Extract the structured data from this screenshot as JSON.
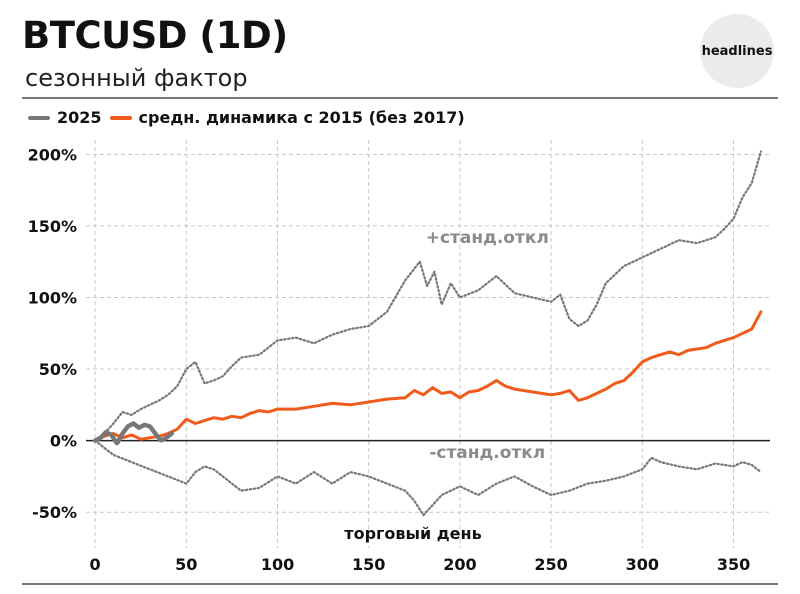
{
  "header": {
    "title": "BTCUSD (1D)",
    "subtitle": "сезонный фактор",
    "logo_text": "headlines"
  },
  "legend": [
    {
      "label": "2025",
      "color": "#777777"
    },
    {
      "label": "средн. динамика с 2015 (без 2017)",
      "color": "#f05a1a"
    }
  ],
  "chart_data": {
    "type": "line",
    "title": "BTCUSD (1D)",
    "subtitle": "сезонный фактор",
    "xlabel": "торговый день",
    "ylabel": "",
    "xlim": [
      -5,
      370
    ],
    "ylim": [
      -75,
      210
    ],
    "x_ticks": [
      0,
      50,
      100,
      150,
      200,
      250,
      300,
      350
    ],
    "y_ticks": [
      -50,
      0,
      50,
      100,
      150,
      200
    ],
    "y_tick_labels": [
      "-50%",
      "0%",
      "50%",
      "100%",
      "150%",
      "200%"
    ],
    "grid": true,
    "legend_position": "top-left",
    "annotations": [
      {
        "text": "+станд.откл",
        "x": 215,
        "y": 138
      },
      {
        "text": "-станд.откл",
        "x": 215,
        "y": -12
      }
    ],
    "series": [
      {
        "name": "средн. динамика с 2015 (без 2017)",
        "color": "#f05a1a",
        "style": "solid",
        "x": [
          0,
          5,
          10,
          15,
          20,
          25,
          30,
          35,
          40,
          45,
          50,
          55,
          60,
          65,
          70,
          75,
          80,
          85,
          90,
          95,
          100,
          110,
          120,
          130,
          140,
          150,
          160,
          170,
          175,
          180,
          185,
          190,
          195,
          200,
          205,
          210,
          215,
          220,
          225,
          230,
          240,
          250,
          255,
          260,
          265,
          270,
          275,
          280,
          285,
          290,
          295,
          300,
          305,
          310,
          315,
          320,
          325,
          330,
          335,
          340,
          345,
          350,
          355,
          360,
          365
        ],
        "y": [
          0,
          3,
          5,
          2,
          4,
          1,
          2,
          3,
          5,
          8,
          15,
          12,
          14,
          16,
          15,
          17,
          16,
          19,
          21,
          20,
          22,
          22,
          24,
          26,
          25,
          27,
          29,
          30,
          35,
          32,
          37,
          33,
          34,
          30,
          34,
          35,
          38,
          42,
          38,
          36,
          34,
          32,
          33,
          35,
          28,
          30,
          33,
          36,
          40,
          42,
          48,
          55,
          58,
          60,
          62,
          60,
          63,
          64,
          65,
          68,
          70,
          72,
          75,
          78,
          90
        ]
      },
      {
        "name": "2025",
        "color": "#777777",
        "style": "solid-thick",
        "x": [
          0,
          3,
          6,
          9,
          12,
          15,
          18,
          21,
          24,
          27,
          30,
          33,
          36,
          39,
          42
        ],
        "y": [
          0,
          2,
          6,
          4,
          -2,
          5,
          10,
          12,
          9,
          11,
          10,
          5,
          0,
          2,
          5
        ]
      },
      {
        "name": "+станд.откл",
        "color": "#777777",
        "style": "dotted",
        "x": [
          0,
          5,
          10,
          15,
          20,
          25,
          30,
          35,
          40,
          45,
          50,
          55,
          60,
          65,
          70,
          75,
          80,
          90,
          100,
          110,
          120,
          130,
          140,
          150,
          160,
          170,
          175,
          178,
          182,
          186,
          190,
          195,
          200,
          210,
          220,
          230,
          240,
          250,
          255,
          260,
          265,
          270,
          275,
          280,
          290,
          300,
          310,
          320,
          330,
          340,
          345,
          350,
          355,
          360,
          365
        ],
        "y": [
          0,
          5,
          12,
          20,
          18,
          22,
          25,
          28,
          32,
          38,
          50,
          55,
          40,
          42,
          45,
          52,
          58,
          60,
          70,
          72,
          68,
          74,
          78,
          80,
          90,
          112,
          120,
          125,
          108,
          118,
          95,
          110,
          100,
          105,
          115,
          103,
          100,
          97,
          102,
          85,
          80,
          84,
          95,
          110,
          122,
          128,
          134,
          140,
          138,
          142,
          148,
          155,
          170,
          180,
          202
        ]
      },
      {
        "name": "-станд.откл",
        "color": "#777777",
        "style": "dotted",
        "x": [
          0,
          5,
          10,
          20,
          30,
          40,
          50,
          55,
          60,
          65,
          70,
          75,
          80,
          90,
          100,
          110,
          120,
          130,
          140,
          150,
          160,
          170,
          175,
          180,
          185,
          190,
          195,
          200,
          210,
          220,
          230,
          240,
          250,
          260,
          270,
          280,
          290,
          300,
          305,
          310,
          320,
          330,
          340,
          350,
          355,
          360,
          365
        ],
        "y": [
          0,
          -5,
          -10,
          -15,
          -20,
          -25,
          -30,
          -22,
          -18,
          -20,
          -25,
          -30,
          -35,
          -33,
          -25,
          -30,
          -22,
          -30,
          -22,
          -25,
          -30,
          -35,
          -42,
          -52,
          -45,
          -38,
          -35,
          -32,
          -38,
          -30,
          -25,
          -32,
          -38,
          -35,
          -30,
          -28,
          -25,
          -20,
          -12,
          -15,
          -18,
          -20,
          -16,
          -18,
          -15,
          -17,
          -22
        ]
      }
    ]
  }
}
